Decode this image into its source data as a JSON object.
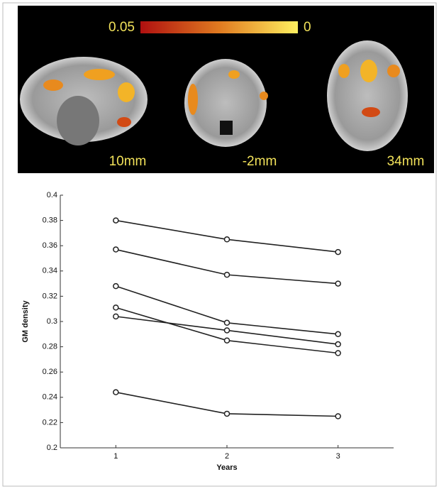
{
  "image_panel": {
    "colorbar_left_label": "0.05",
    "colorbar_right_label": "0",
    "slices": [
      "10mm",
      "-2mm",
      "34mm"
    ]
  },
  "chart_data": {
    "type": "line",
    "x_label": "Years",
    "y_label": "GM density",
    "x": [
      1,
      2,
      3
    ],
    "series": [
      {
        "color": "#222222",
        "values": [
          0.38,
          0.365,
          0.355
        ]
      },
      {
        "color": "#222222",
        "values": [
          0.357,
          0.337,
          0.33
        ]
      },
      {
        "color": "#222222",
        "values": [
          0.328,
          0.299,
          0.29
        ]
      },
      {
        "color": "#222222",
        "values": [
          0.311,
          0.285,
          0.275
        ]
      },
      {
        "color": "#222222",
        "values": [
          0.304,
          0.293,
          0.282
        ]
      },
      {
        "color": "#222222",
        "values": [
          0.244,
          0.227,
          0.225
        ]
      }
    ],
    "xlim": [
      0.5,
      3.5
    ],
    "xticks": [
      1,
      2,
      3
    ],
    "ylim": [
      0.2,
      0.4
    ],
    "yticks": [
      0.2,
      0.22,
      0.24,
      0.26,
      0.28,
      0.3,
      0.32,
      0.34,
      0.36,
      0.38,
      0.4
    ],
    "grid": false,
    "markers": "open-circle"
  }
}
